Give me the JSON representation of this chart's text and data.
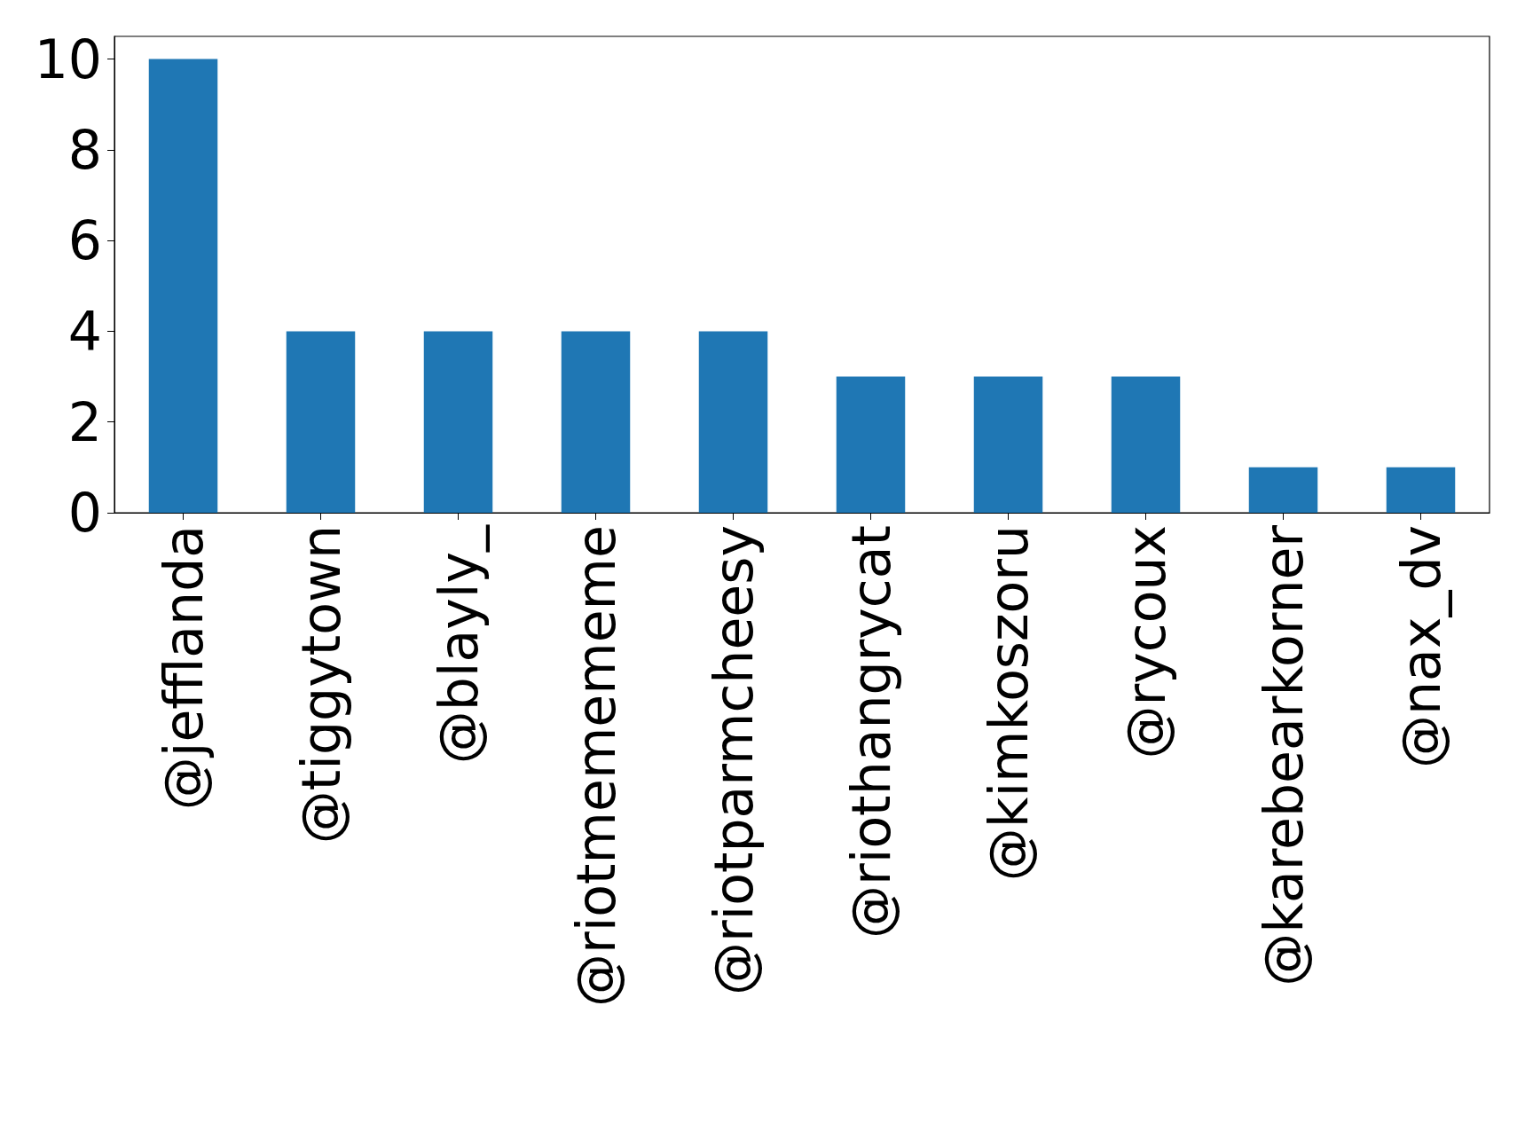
{
  "chart_data": {
    "type": "bar",
    "categories": [
      "@jefflanda",
      "@tiggytown",
      "@blayly_",
      "@riotmemememe",
      "@riotparmcheesy",
      "@riothangrycat",
      "@kimkoszoru",
      "@rycoux",
      "@karebearkorner",
      "@nax_dv"
    ],
    "values": [
      10,
      4,
      4,
      4,
      4,
      3,
      3,
      3,
      1,
      1
    ],
    "color": "#1f77b4",
    "ylim": [
      0,
      10.5
    ],
    "yticks": [
      0,
      2,
      4,
      6,
      8,
      10
    ],
    "grid": false
  }
}
